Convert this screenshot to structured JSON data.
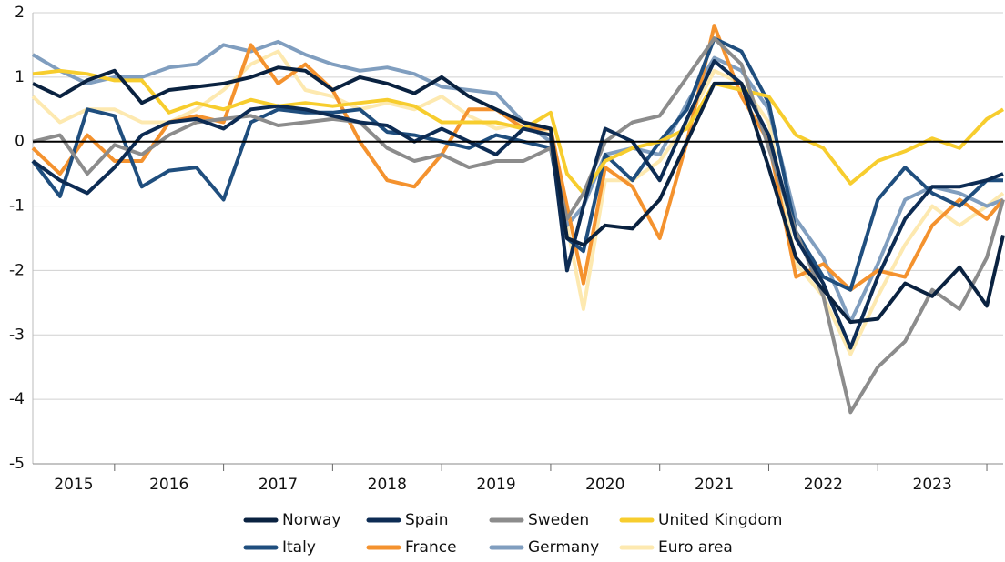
{
  "chart_data": {
    "type": "line",
    "x": [
      2015.25,
      2015.5,
      2015.75,
      2016,
      2016.25,
      2016.5,
      2016.75,
      2017,
      2017.25,
      2017.5,
      2017.75,
      2018,
      2018.25,
      2018.5,
      2018.75,
      2019,
      2019.25,
      2019.5,
      2019.75,
      2020,
      2020.15,
      2020.3,
      2020.5,
      2020.75,
      2021,
      2021.25,
      2021.5,
      2021.75,
      2022,
      2022.25,
      2022.5,
      2022.75,
      2023,
      2023.25,
      2023.5,
      2023.75,
      2024,
      2024.15
    ],
    "series": [
      {
        "name": "Norway",
        "color": "#0a2240",
        "values": [
          0.9,
          0.7,
          0.95,
          1.1,
          0.6,
          0.8,
          0.85,
          0.9,
          1.0,
          1.15,
          1.1,
          0.8,
          1.0,
          0.9,
          0.75,
          1.0,
          0.7,
          0.5,
          0.3,
          0.2,
          -1.5,
          -1.6,
          -1.3,
          -1.35,
          -0.9,
          0.0,
          0.9,
          0.9,
          -0.4,
          -1.8,
          -2.3,
          -2.8,
          -2.75,
          -2.2,
          -2.4,
          -1.95,
          -2.55,
          -1.45
        ]
      },
      {
        "name": "Spain",
        "color": "#0d2c54",
        "values": [
          -0.3,
          -0.6,
          -0.8,
          -0.4,
          0.1,
          0.3,
          0.35,
          0.2,
          0.5,
          0.55,
          0.5,
          0.4,
          0.3,
          0.25,
          0.0,
          0.2,
          0.0,
          -0.2,
          0.2,
          0.1,
          -2.0,
          -1.0,
          0.2,
          0.0,
          -0.6,
          0.35,
          1.25,
          0.9,
          0.1,
          -1.5,
          -2.2,
          -3.2,
          -2.1,
          -1.2,
          -0.7,
          -0.7,
          -0.6,
          -0.5
        ]
      },
      {
        "name": "Sweden",
        "color": "#8c8c8c",
        "values": [
          0.0,
          0.1,
          -0.5,
          -0.05,
          -0.2,
          0.1,
          0.3,
          0.35,
          0.4,
          0.25,
          0.3,
          0.35,
          0.3,
          -0.1,
          -0.3,
          -0.2,
          -0.4,
          -0.3,
          -0.3,
          -0.1,
          -1.2,
          -0.8,
          0.0,
          0.3,
          0.4,
          1.0,
          1.6,
          1.2,
          -0.1,
          -1.4,
          -2.4,
          -4.2,
          -3.5,
          -3.1,
          -2.3,
          -2.6,
          -1.8,
          -0.9
        ]
      },
      {
        "name": "United Kingdom",
        "color": "#f7cd2e",
        "values": [
          1.05,
          1.1,
          1.05,
          0.95,
          0.95,
          0.45,
          0.6,
          0.5,
          0.65,
          0.55,
          0.6,
          0.55,
          0.6,
          0.65,
          0.55,
          0.3,
          0.3,
          0.3,
          0.2,
          0.45,
          -0.5,
          -0.8,
          -0.3,
          -0.1,
          0.0,
          0.2,
          0.9,
          0.8,
          0.7,
          0.1,
          -0.1,
          -0.65,
          -0.3,
          -0.15,
          0.05,
          -0.1,
          0.35,
          0.5
        ]
      },
      {
        "name": "Italy",
        "color": "#1f4e7e",
        "values": [
          -0.3,
          -0.85,
          0.5,
          0.4,
          -0.7,
          -0.45,
          -0.4,
          -0.9,
          0.3,
          0.5,
          0.45,
          0.45,
          0.5,
          0.15,
          0.1,
          0.0,
          -0.1,
          0.1,
          0.0,
          -0.1,
          -1.5,
          -1.7,
          -0.2,
          -0.6,
          0.0,
          0.5,
          1.6,
          1.4,
          0.6,
          -1.4,
          -2.1,
          -2.3,
          -0.9,
          -0.4,
          -0.8,
          -1.0,
          -0.6,
          -0.6
        ]
      },
      {
        "name": "France",
        "color": "#f4922e",
        "values": [
          -0.1,
          -0.5,
          0.1,
          -0.3,
          -0.3,
          0.3,
          0.4,
          0.3,
          1.5,
          0.9,
          1.2,
          0.8,
          0.0,
          -0.6,
          -0.7,
          -0.2,
          0.5,
          0.5,
          0.2,
          0.2,
          -1.0,
          -2.2,
          -0.4,
          -0.7,
          -1.5,
          0.0,
          1.8,
          0.7,
          0.0,
          -2.1,
          -1.9,
          -2.3,
          -2.0,
          -2.1,
          -1.3,
          -0.9,
          -1.2,
          -0.9
        ]
      },
      {
        "name": "Germany",
        "color": "#809ebf",
        "values": [
          1.35,
          1.1,
          0.9,
          1.0,
          1.0,
          1.15,
          1.2,
          1.5,
          1.4,
          1.55,
          1.35,
          1.2,
          1.1,
          1.15,
          1.05,
          0.85,
          0.8,
          0.75,
          0.3,
          0.0,
          -1.3,
          -1.0,
          -0.2,
          -0.1,
          -0.2,
          0.6,
          1.3,
          1.1,
          0.5,
          -1.2,
          -1.8,
          -2.8,
          -1.9,
          -0.9,
          -0.7,
          -0.8,
          -1.0,
          -0.9
        ]
      },
      {
        "name": "Euro area",
        "color": "#fde9b0",
        "values": [
          0.7,
          0.3,
          0.5,
          0.5,
          0.3,
          0.3,
          0.5,
          0.8,
          1.2,
          1.4,
          0.8,
          0.7,
          0.5,
          0.6,
          0.5,
          0.7,
          0.4,
          0.2,
          0.3,
          0.1,
          -1.3,
          -2.6,
          -0.6,
          -0.6,
          -0.3,
          0.3,
          1.1,
          0.9,
          0.3,
          -1.9,
          -2.4,
          -3.3,
          -2.4,
          -1.6,
          -1.0,
          -1.3,
          -1.0,
          -0.8
        ]
      }
    ],
    "xlim": [
      2015.25,
      2024.15
    ],
    "xticks": [
      {
        "value": 2015,
        "label": "2015"
      },
      {
        "value": 2016,
        "label": "2016"
      },
      {
        "value": 2017,
        "label": "2017"
      },
      {
        "value": 2018,
        "label": "2018"
      },
      {
        "value": 2019,
        "label": "2019"
      },
      {
        "value": 2020,
        "label": "2020"
      },
      {
        "value": 2021,
        "label": "2021"
      },
      {
        "value": 2022,
        "label": "2022"
      },
      {
        "value": 2023,
        "label": "2023"
      }
    ],
    "ylim": [
      -5,
      2
    ],
    "yticks": [
      -5,
      -4,
      -3,
      -2,
      -1,
      0,
      1,
      2
    ],
    "grid": true
  }
}
